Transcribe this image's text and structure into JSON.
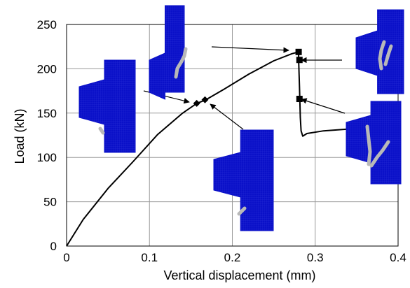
{
  "chart_data": {
    "type": "line",
    "title": "",
    "xlabel": "Vertical displacement (mm)",
    "ylabel": "Load (kN)",
    "xlim": [
      0,
      0.4
    ],
    "ylim": [
      0,
      250
    ],
    "x_ticks": [
      "0",
      "0.1",
      "0.2",
      "0.3",
      "0.4"
    ],
    "y_ticks": [
      "0",
      "50",
      "100",
      "150",
      "200",
      "250"
    ],
    "grid": true,
    "legend": "none",
    "series": [
      {
        "x": [
          0.0,
          0.02,
          0.05,
          0.08,
          0.11,
          0.14,
          0.157,
          0.168,
          0.19,
          0.22,
          0.25,
          0.272,
          0.28,
          0.28,
          0.281,
          0.282,
          0.283,
          0.285,
          0.29,
          0.31,
          0.34
        ],
        "y": [
          0,
          30,
          65,
          95,
          126,
          150,
          161,
          165,
          177,
          194,
          209,
          217,
          219,
          210,
          180,
          145,
          130,
          124,
          127,
          130,
          132
        ]
      }
    ],
    "markers": [
      {
        "shape": "diamond",
        "x": 0.157,
        "y": 161
      },
      {
        "shape": "diamond",
        "x": 0.167,
        "y": 165
      },
      {
        "shape": "square",
        "x": 0.28,
        "y": 219
      },
      {
        "shape": "square",
        "x": 0.281,
        "y": 210
      },
      {
        "shape": "square",
        "x": 0.281,
        "y": 166
      }
    ],
    "insets": [
      {
        "name": "crack-inset-initial",
        "crack_severity": 1
      },
      {
        "name": "crack-inset-early",
        "crack_severity": 2
      },
      {
        "name": "crack-inset-peak",
        "crack_severity": 3
      },
      {
        "name": "crack-inset-midpeak",
        "crack_severity": 3
      },
      {
        "name": "crack-inset-post-peak",
        "crack_severity": 4
      }
    ],
    "colors": {
      "curve": "#000000",
      "grid": "#9a9a9a",
      "mesh_fill": "#0a10c8",
      "mesh_line": "#3a40e0",
      "crack": "#b8b8b8"
    }
  }
}
